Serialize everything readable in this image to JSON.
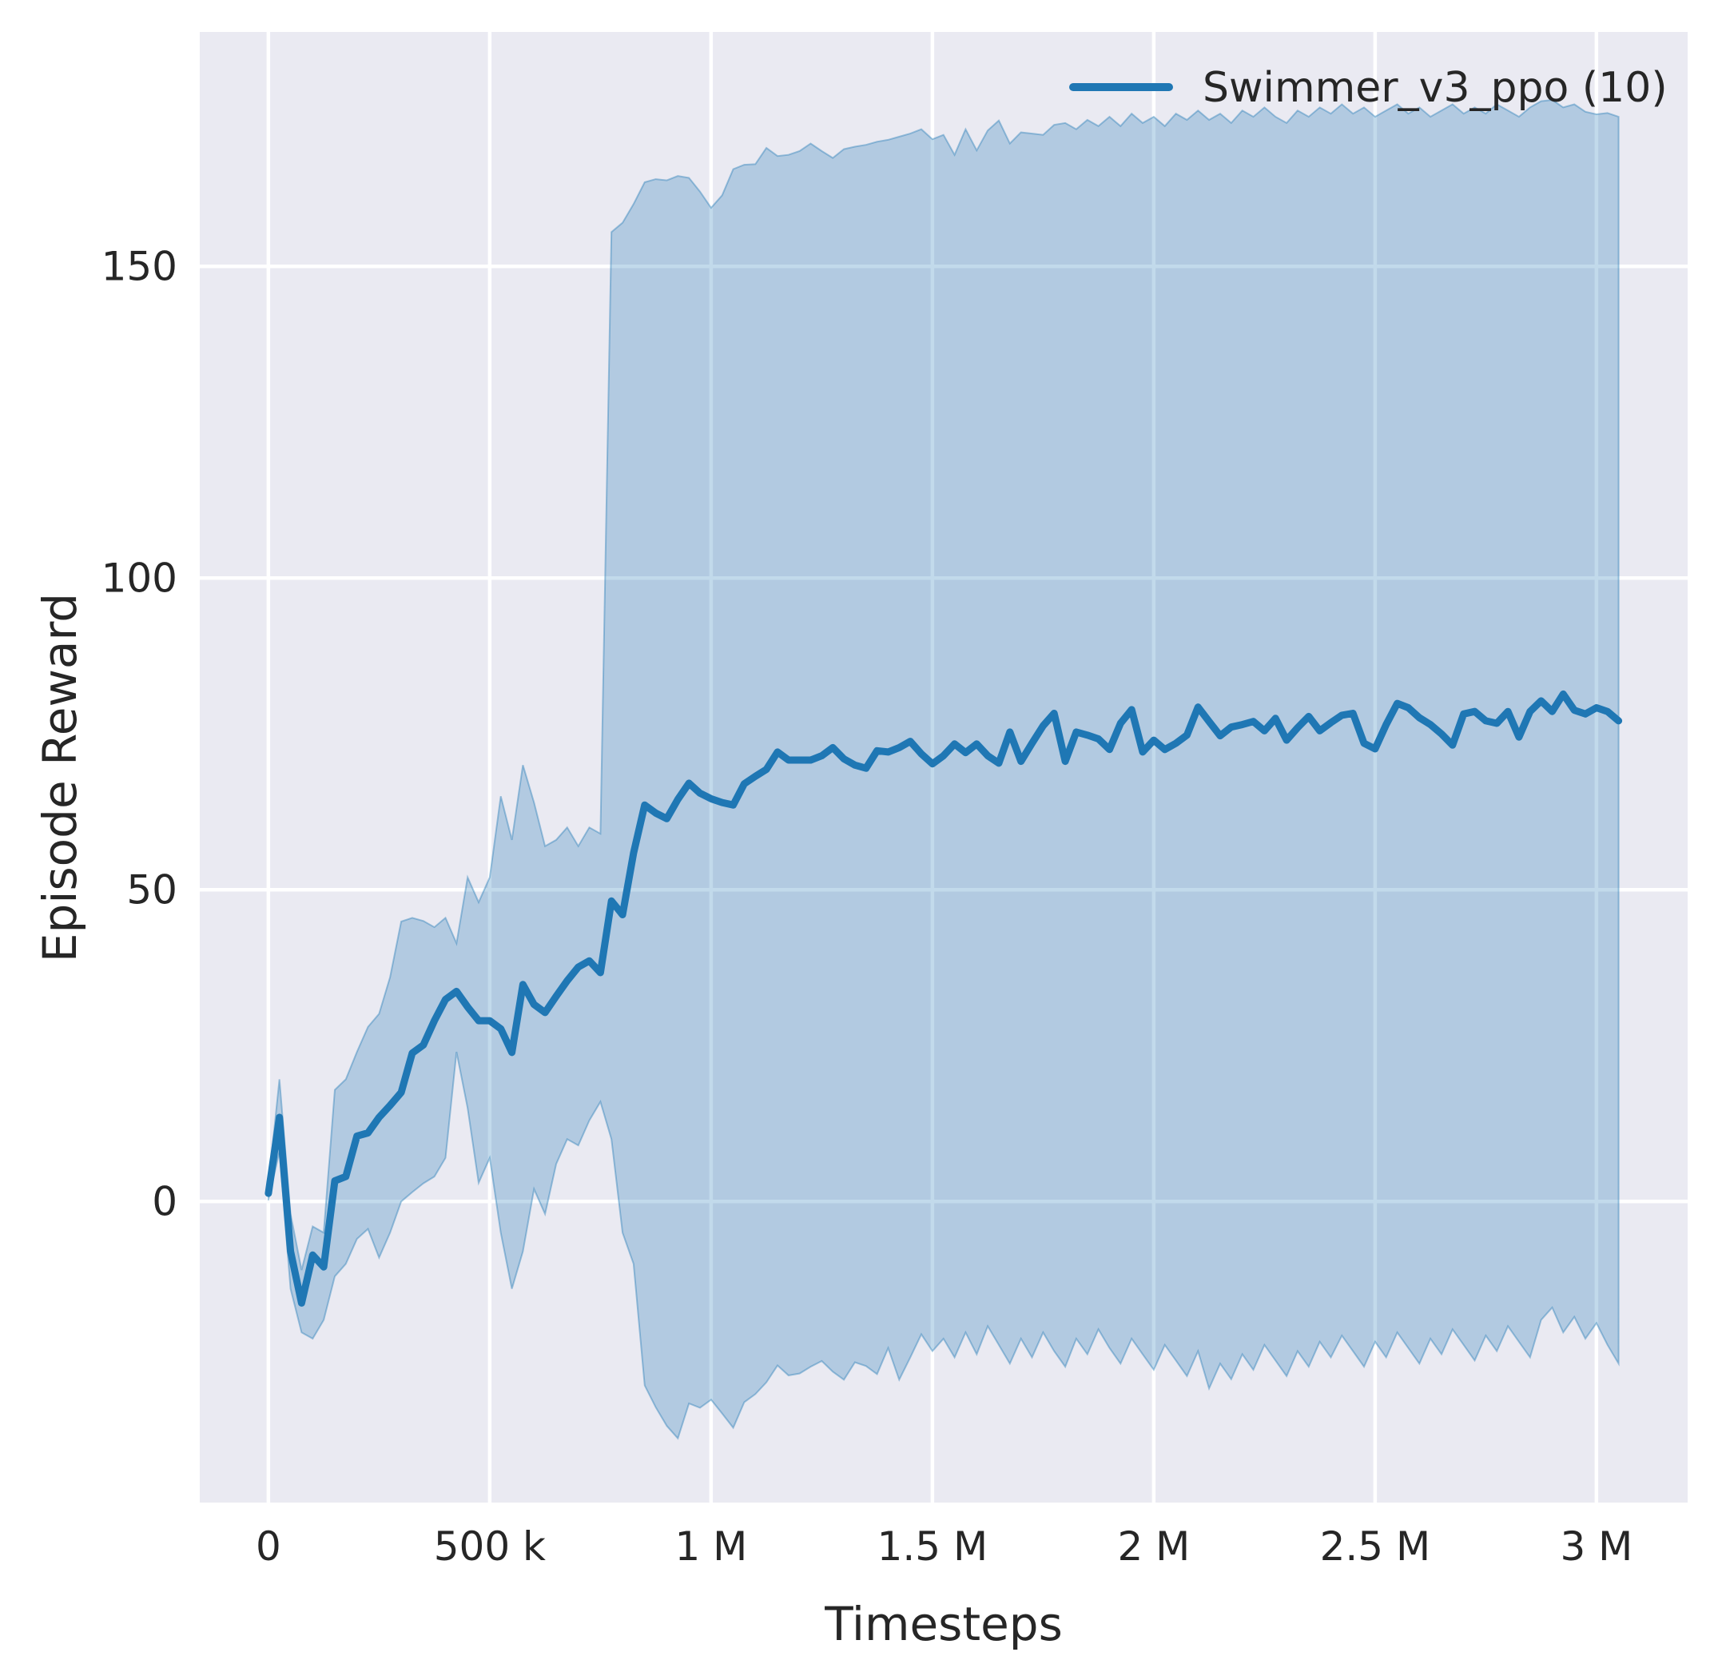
{
  "figure": {
    "background": "#ffffff",
    "plot_background": "#eaeaf2",
    "grid_color": "#ffffff"
  },
  "legend": {
    "position": "upper right",
    "entries": [
      {
        "label": "Swimmer_v3_ppo (10)",
        "color": "#1f77b4"
      }
    ]
  },
  "chart_data": {
    "type": "line",
    "title": "",
    "xlabel": "Timesteps",
    "ylabel": "Episode Reward",
    "grid": true,
    "legend_position": "upper right",
    "xlim": [
      -155000,
      3206000
    ],
    "ylim": [
      -48.3,
      187.6
    ],
    "x_ticks": {
      "values": [
        0,
        500000,
        1000000,
        1500000,
        2000000,
        2500000,
        3000000
      ],
      "labels": [
        "0",
        "500 k",
        "1 M",
        "1.5 M",
        "2 M",
        "2.5 M",
        "3 M"
      ]
    },
    "y_ticks": {
      "values": [
        0,
        50,
        100,
        150
      ],
      "labels": [
        "0",
        "50",
        "100",
        "150"
      ]
    },
    "series": [
      {
        "name": "Swimmer_v3_ppo (10)",
        "color": "#1f77b4",
        "band_fill_color": "#1f77b4",
        "band_fill_alpha": 0.27,
        "band_edge_alpha": 0.4,
        "x_start": 0,
        "x_step": 25000,
        "mean": [
          1.3,
          13.5,
          -8,
          -16.3,
          -8.6,
          -10.5,
          3.3,
          4.0,
          10.5,
          11.0,
          13.5,
          15.4,
          17.5,
          23.8,
          25.1,
          29.0,
          32.4,
          33.7,
          31.2,
          29.0,
          29.0,
          27.7,
          23.9,
          34.8,
          31.6,
          30.3,
          32.9,
          35.4,
          37.6,
          38.6,
          36.7,
          48.2,
          46.0,
          55.9,
          63.6,
          62.3,
          61.4,
          64.5,
          67.1,
          65.5,
          64.6,
          64.0,
          63.6,
          67.0,
          68.2,
          69.3,
          72.1,
          70.8,
          70.8,
          70.8,
          71.5,
          72.8,
          71.0,
          70.0,
          69.5,
          72.3,
          72.1,
          72.8,
          73.8,
          71.8,
          70.2,
          71.5,
          73.4,
          72.0,
          73.4,
          71.5,
          70.3,
          75.3,
          70.6,
          73.5,
          76.3,
          78.3,
          70.6,
          75.3,
          74.8,
          74.2,
          72.5,
          76.7,
          78.9,
          72.1,
          74.0,
          72.5,
          73.5,
          74.8,
          79.3,
          77.0,
          74.7,
          76.1,
          76.5,
          77.0,
          75.5,
          77.5,
          74.0,
          76.0,
          77.8,
          75.5,
          76.8,
          78.0,
          78.3,
          73.5,
          72.6,
          76.5,
          79.9,
          79.2,
          77.6,
          76.5,
          75.0,
          73.2,
          78.2,
          78.6,
          77.1,
          76.7,
          78.6,
          74.5,
          78.6,
          80.3,
          78.6,
          81.4,
          78.8,
          78.2,
          79.2,
          78.6,
          77.1
        ],
        "band_upper": [
          2.5,
          19.6,
          -2,
          -11,
          -4,
          -5,
          17.9,
          19.6,
          24,
          28,
          30.1,
          36,
          44.9,
          45.5,
          45.0,
          44.0,
          45.5,
          41.4,
          52,
          48,
          52,
          65,
          58,
          70,
          64,
          57,
          58,
          60,
          57,
          60,
          59,
          155.5,
          157,
          160,
          163.5,
          164,
          163.8,
          164.5,
          164.2,
          162,
          159.4,
          161.4,
          165.6,
          166.3,
          166.4,
          169.0,
          167.7,
          167.9,
          168.5,
          169.7,
          168.5,
          167.4,
          168.8,
          169.2,
          169.5,
          170.0,
          170.3,
          170.8,
          171.3,
          172.0,
          170.4,
          171.1,
          167.9,
          172.0,
          168.6,
          171.8,
          173.4,
          169.7,
          171.5,
          171.3,
          171.1,
          172.7,
          173.0,
          172.0,
          173.5,
          172.5,
          174.0,
          172.5,
          174.5,
          173.0,
          174.0,
          172.5,
          174.5,
          173.5,
          175.0,
          173.5,
          174.5,
          173.0,
          175.0,
          174.0,
          175.5,
          174.0,
          173.0,
          175.0,
          174.0,
          175.5,
          174.5,
          176.0,
          174.5,
          175.5,
          174.0,
          175.0,
          176.0,
          174.5,
          175.5,
          174.0,
          175.0,
          176.0,
          174.5,
          175.5,
          174.5,
          176.0,
          175.0,
          174.0,
          175.5,
          176.5,
          176.7,
          175.5,
          176.0,
          174.8,
          174.4,
          174.6,
          174.0
        ],
        "band_lower": [
          0.2,
          8,
          -14,
          -21,
          -22,
          -19,
          -12,
          -10,
          -6,
          -4.4,
          -9,
          -5,
          0,
          1.5,
          2.9,
          4,
          7,
          24,
          15,
          3,
          7,
          -5,
          -14,
          -8,
          2,
          -2,
          6,
          10,
          9,
          13,
          16,
          10,
          -5,
          -10,
          -29.5,
          -33,
          -36,
          -38,
          -32.4,
          -33.1,
          -31.8,
          -34,
          -36.3,
          -32.2,
          -30.9,
          -29,
          -26.3,
          -27.9,
          -27.6,
          -26.5,
          -25.6,
          -27.3,
          -28.6,
          -25.8,
          -26.4,
          -27.7,
          -23.5,
          -28.6,
          -25,
          -21.3,
          -24,
          -22,
          -25,
          -21,
          -24.5,
          -20,
          -23,
          -26,
          -22,
          -25,
          -21,
          -24,
          -26.5,
          -22,
          -24.5,
          -20.5,
          -23.5,
          -26,
          -22,
          -24.5,
          -27,
          -23,
          -25.5,
          -28,
          -24,
          -30,
          -26,
          -28.5,
          -24.5,
          -27,
          -23,
          -25.5,
          -28,
          -24,
          -26.5,
          -22.5,
          -25,
          -21.5,
          -24,
          -26.5,
          -22.5,
          -25,
          -21,
          -23.5,
          -26,
          -22,
          -24.5,
          -20.5,
          -23,
          -25.5,
          -21.5,
          -24,
          -20,
          -22.5,
          -25,
          -19,
          -17,
          -21,
          -18.5,
          -22,
          -19.5,
          -23,
          -26
        ]
      }
    ]
  }
}
